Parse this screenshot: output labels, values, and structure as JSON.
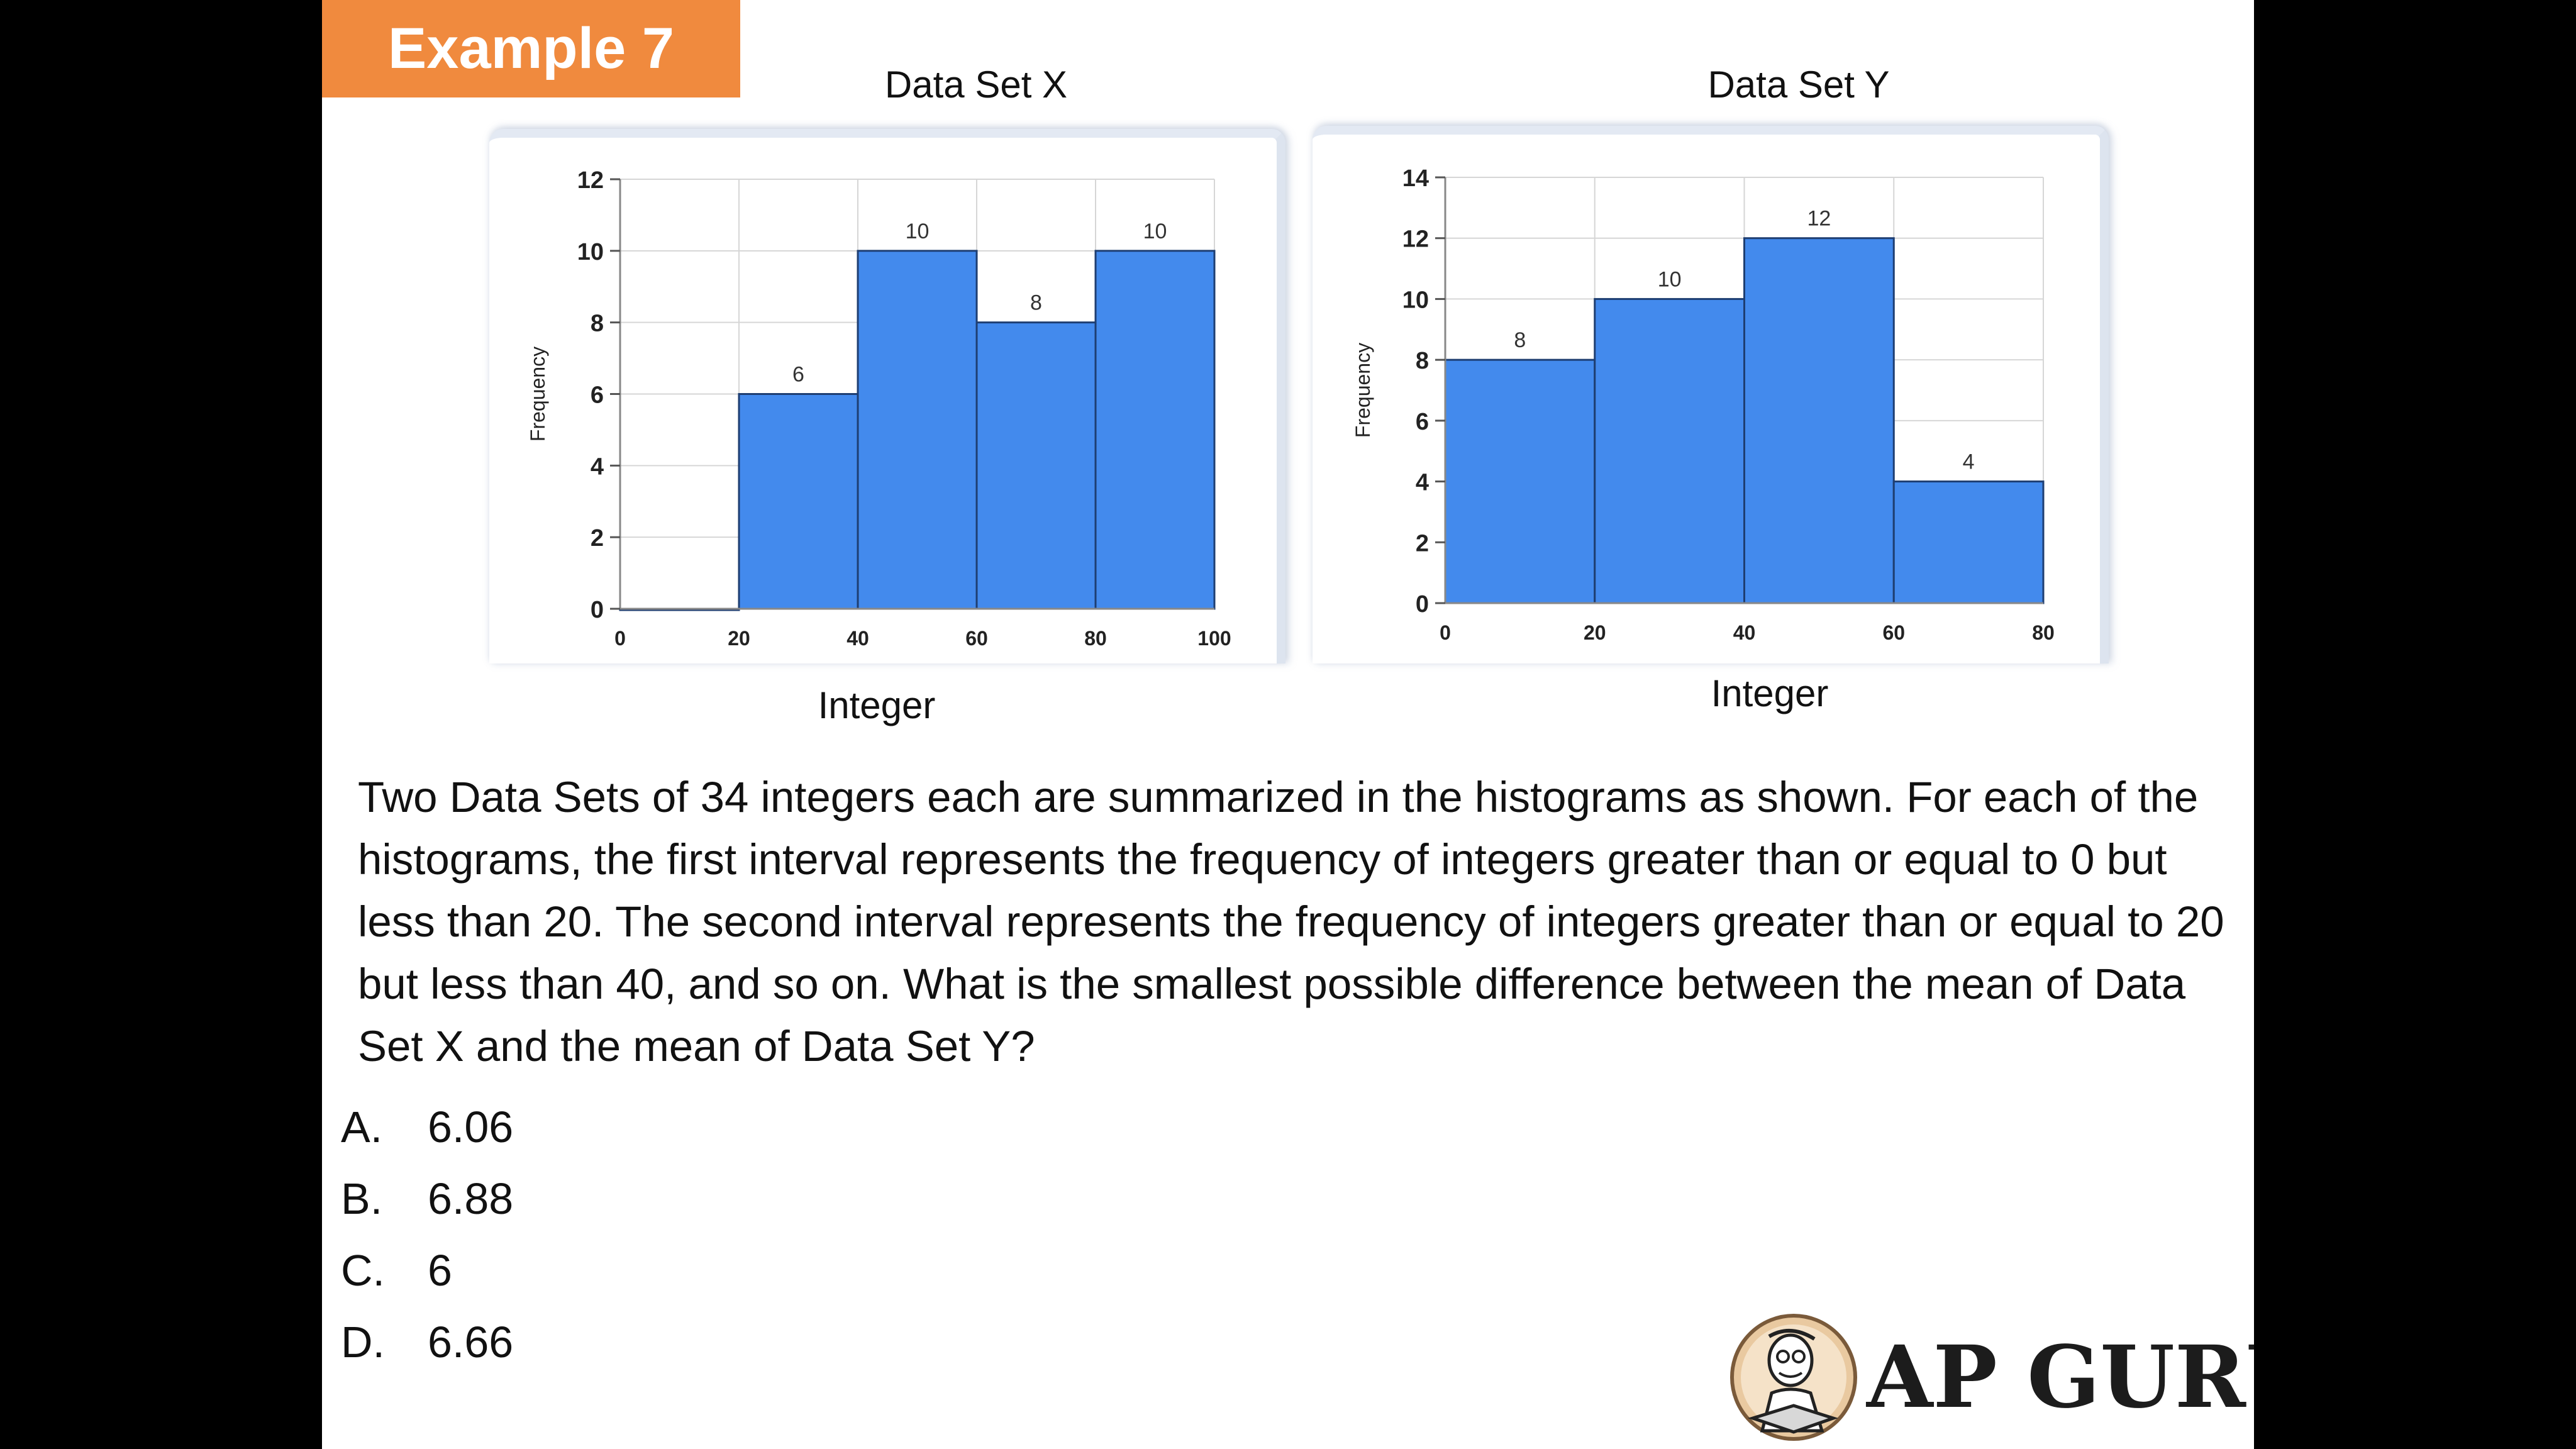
{
  "badge": "Example 7",
  "chart_data": [
    {
      "type": "bar",
      "title": "Data Set X",
      "xlabel": "Integer",
      "ylabel": "Frequency",
      "x_ticks": [
        0,
        20,
        40,
        60,
        80,
        100
      ],
      "y_ticks": [
        0,
        2,
        4,
        6,
        8,
        10,
        12
      ],
      "xlim": [
        0,
        100
      ],
      "ylim": [
        0,
        12
      ],
      "bins": [
        [
          0,
          20
        ],
        [
          20,
          40
        ],
        [
          40,
          60
        ],
        [
          60,
          80
        ],
        [
          80,
          100
        ]
      ],
      "values": [
        0,
        6,
        10,
        8,
        10
      ],
      "value_labels": [
        "",
        "6",
        "10",
        "8",
        "10"
      ],
      "grid": true,
      "bar_color": "#438aed"
    },
    {
      "type": "bar",
      "title": "Data Set Y",
      "xlabel": "Integer",
      "ylabel": "Frequency",
      "x_ticks": [
        0,
        20,
        40,
        60,
        80
      ],
      "y_ticks": [
        0,
        2,
        4,
        6,
        8,
        10,
        12,
        14
      ],
      "xlim": [
        0,
        80
      ],
      "ylim": [
        0,
        14
      ],
      "bins": [
        [
          0,
          20
        ],
        [
          20,
          40
        ],
        [
          40,
          60
        ],
        [
          60,
          80
        ]
      ],
      "values": [
        8,
        10,
        12,
        4
      ],
      "value_labels": [
        "8",
        "10",
        "12",
        "4"
      ],
      "grid": true,
      "bar_color": "#438aed"
    }
  ],
  "question": "Two Data Sets of 34 integers each are summarized in the histograms as shown. For each of the histograms, the first interval represents the frequency of integers greater than or equal to 0 but less than 20.  The second interval represents the frequency of integers greater than or equal to 20 but less than 40, and so on. What is the smallest possible difference between the mean of Data Set X and the mean of Data Set Y?",
  "options": [
    {
      "letter": "A.",
      "text": "6.06"
    },
    {
      "letter": "B.",
      "text": "6.88"
    },
    {
      "letter": "C.",
      "text": "6"
    },
    {
      "letter": "D.",
      "text": "6.66"
    }
  ],
  "logo": {
    "text": "AP GURU",
    "icon": "reading-character-icon"
  }
}
